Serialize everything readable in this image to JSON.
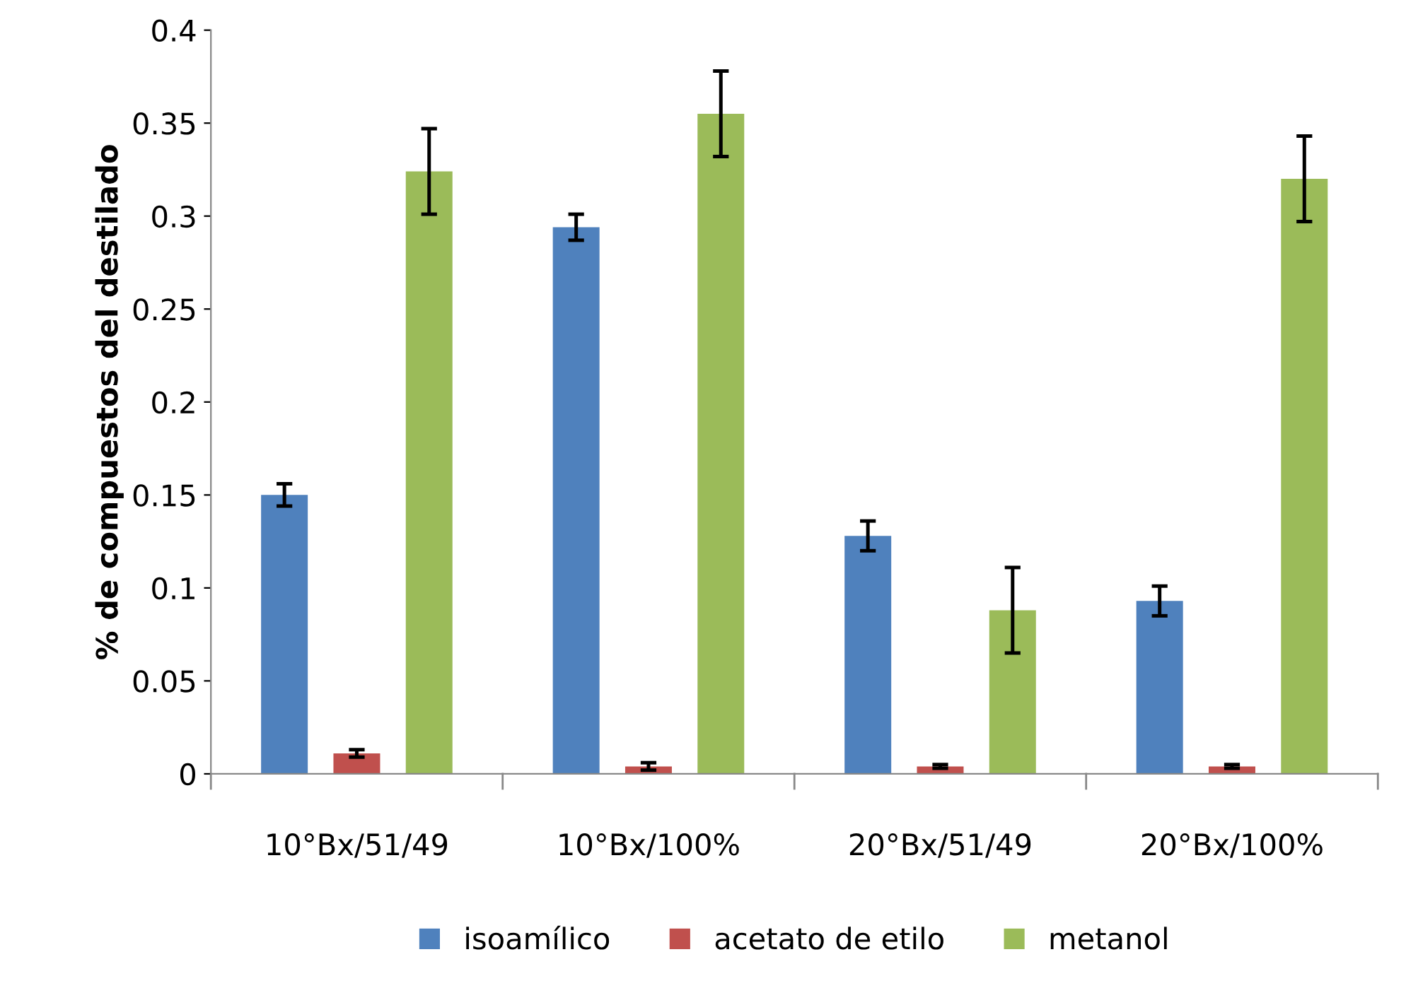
{
  "chart_data": {
    "type": "bar",
    "ylabel": "% de compuestos del destilado",
    "categories": [
      "10°Bx/51/49",
      "10°Bx/100%",
      "20°Bx/51/49",
      "20°Bx/100%"
    ],
    "series": [
      {
        "name": "isoamílico",
        "color": "#4f81bd",
        "values": [
          0.15,
          0.294,
          0.128,
          0.093
        ],
        "errors": [
          0.006,
          0.007,
          0.008,
          0.008
        ]
      },
      {
        "name": "acetato de etilo",
        "color": "#c0504d",
        "values": [
          0.011,
          0.004,
          0.004,
          0.004
        ],
        "errors": [
          0.002,
          0.002,
          0.001,
          0.001
        ]
      },
      {
        "name": "metanol",
        "color": "#9bbb59",
        "values": [
          0.324,
          0.355,
          0.088,
          0.32
        ],
        "errors": [
          0.023,
          0.023,
          0.023,
          0.023
        ]
      }
    ],
    "ylim": [
      0,
      0.4
    ],
    "yticks": [
      {
        "value": 0,
        "label": "0"
      },
      0.05,
      0.1,
      0.15,
      0.2,
      0.25,
      0.3,
      0.35,
      0.4
    ],
    "grid": false,
    "legend": "bottom"
  }
}
